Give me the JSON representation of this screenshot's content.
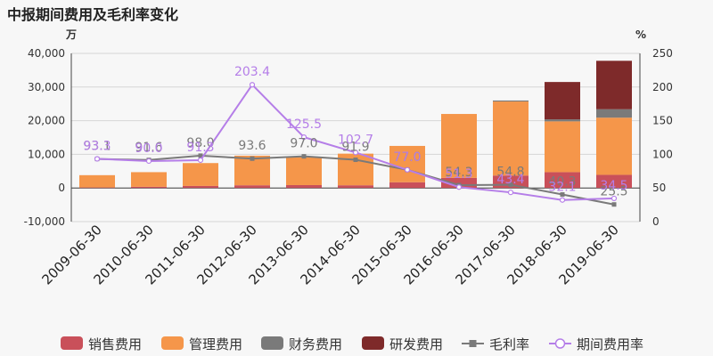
{
  "chart_data": {
    "type": "bar",
    "title": "中报期间费用及毛利率变化",
    "left_unit": "万",
    "right_unit": "%",
    "ylim_left": [
      -10000,
      40000
    ],
    "yticks_left": [
      "-10,000",
      "0",
      "10,000",
      "20,000",
      "30,000",
      "40,000"
    ],
    "ylim_right": [
      0,
      250
    ],
    "yticks_right": [
      "0",
      "50",
      "100",
      "150",
      "200",
      "250"
    ],
    "categories": [
      "2009-06-30",
      "2010-06-30",
      "2011-06-30",
      "2012-06-30",
      "2013-06-30",
      "2014-06-30",
      "2015-06-30",
      "2016-06-30",
      "2017-06-30",
      "2018-06-30",
      "2019-06-30"
    ],
    "bar_series": [
      {
        "name": "销售费用",
        "color": "#c9505a",
        "values": [
          150,
          350,
          600,
          800,
          850,
          800,
          1700,
          3000,
          3700,
          4700,
          3900
        ]
      },
      {
        "name": "管理费用",
        "color": "#f5964a",
        "values": [
          3650,
          4350,
          6800,
          8800,
          8300,
          9400,
          10800,
          19000,
          22000,
          15100,
          17000
        ]
      },
      {
        "name": "财务费用",
        "color": "#7a7a7a",
        "values": [
          0,
          0,
          0,
          0,
          0,
          0,
          0,
          0,
          300,
          600,
          2500
        ]
      },
      {
        "name": "研发费用",
        "color": "#7e2a2a",
        "values": [
          0,
          0,
          0,
          0,
          0,
          0,
          0,
          0,
          0,
          11100,
          14400
        ]
      }
    ],
    "line_series": [
      {
        "name": "毛利率",
        "color": "#7a7a7a",
        "marker": "square",
        "values": [
          93.1,
          91.6,
          98.0,
          93.6,
          97.0,
          91.9,
          77.0,
          54.3,
          54.8,
          40.3,
          25.5
        ]
      },
      {
        "name": "期间费用率",
        "color": "#b57ee8",
        "marker": "circle",
        "values": [
          93.3,
          90.0,
          91.3,
          203.4,
          125.5,
          102.7,
          77.0,
          51.3,
          43.4,
          32.1,
          34.5
        ]
      }
    ],
    "line_label_text": {
      "毛利率": [
        "93.1",
        "91.6",
        "98.0",
        "93.6",
        "97.0",
        "91.9",
        "77.0",
        "54.3",
        "54.8",
        "40.3",
        "25.5"
      ],
      "期间费用率": [
        "93.3",
        "90.0",
        "91.3",
        "203.4",
        "125.5",
        "102.7",
        "77.0",
        "51.3",
        "43.4",
        "32.1",
        "34.5"
      ]
    },
    "legend": [
      "销售费用",
      "管理费用",
      "财务费用",
      "研发费用",
      "毛利率",
      "期间费用率"
    ],
    "legend_position": "bottom"
  }
}
